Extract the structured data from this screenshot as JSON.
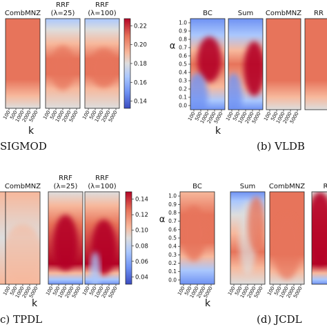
{
  "figure": {
    "captions": [
      "SIGMOD",
      "(b) VLDB",
      "c) TPDL",
      "(d) JCDL"
    ],
    "colormap": [
      "#3b4cc0",
      "#6f92f3",
      "#aac7fd",
      "#dddddd",
      "#f7b89c",
      "#e7745b",
      "#b40426"
    ]
  },
  "chart_data": [
    {
      "id": "a",
      "type": "heatmap",
      "caption": "SIGMOD",
      "panels": [
        "CombMNZ",
        "RRF (λ=25)",
        "RRF (λ=100)"
      ],
      "x_ticks": [
        "100",
        "500",
        "1000",
        "2000",
        "5000"
      ],
      "x_label": "k",
      "y_ticks": [],
      "y_label": "",
      "colorbar_ticks": [
        "0.22",
        "0.20",
        "0.18",
        "0.16",
        "0.14"
      ],
      "colorbar_range": [
        0.13,
        0.235
      ],
      "grid": false
    },
    {
      "id": "b",
      "type": "heatmap",
      "caption": "(b) VLDB",
      "panels": [
        "BC",
        "Sum",
        "CombMNZ",
        "RR"
      ],
      "x_ticks": [
        "100",
        "500",
        "1000",
        "2000",
        "5000"
      ],
      "x_label": "k",
      "y_ticks": [
        "1.0",
        "0.9",
        "0.8",
        "0.7",
        "0.6",
        "0.5",
        "0.4",
        "0.3",
        "0.2",
        "0.1",
        "0.0"
      ],
      "y_label": "α",
      "colorbar_ticks": [],
      "grid": false
    },
    {
      "id": "c",
      "type": "heatmap",
      "caption": "c) TPDL",
      "panels": [
        "CombMNZ",
        "RRF (λ=25)",
        "RRF (λ=100)"
      ],
      "x_ticks": [
        "100",
        "500",
        "1000",
        "2000",
        "5000"
      ],
      "x_label": "k",
      "y_ticks": [],
      "y_label": "",
      "colorbar_ticks": [
        "0.14",
        "0.12",
        "0.10",
        "0.08",
        "0.06",
        "0.04"
      ],
      "colorbar_range": [
        0.035,
        0.148
      ],
      "grid": false
    },
    {
      "id": "d",
      "type": "heatmap",
      "caption": "(d) JCDL",
      "panels": [
        "BC",
        "Sum",
        "CombMNZ",
        "R"
      ],
      "x_ticks": [
        "100",
        "500",
        "1000",
        "2000",
        "5000"
      ],
      "x_label": "k",
      "y_ticks": [
        "1.0",
        "0.9",
        "0.8",
        "0.7",
        "0.6",
        "0.5",
        "0.4",
        "0.3",
        "0.2",
        "0.1",
        "0.0"
      ],
      "y_label": "α",
      "colorbar_ticks": [],
      "grid": false
    }
  ]
}
